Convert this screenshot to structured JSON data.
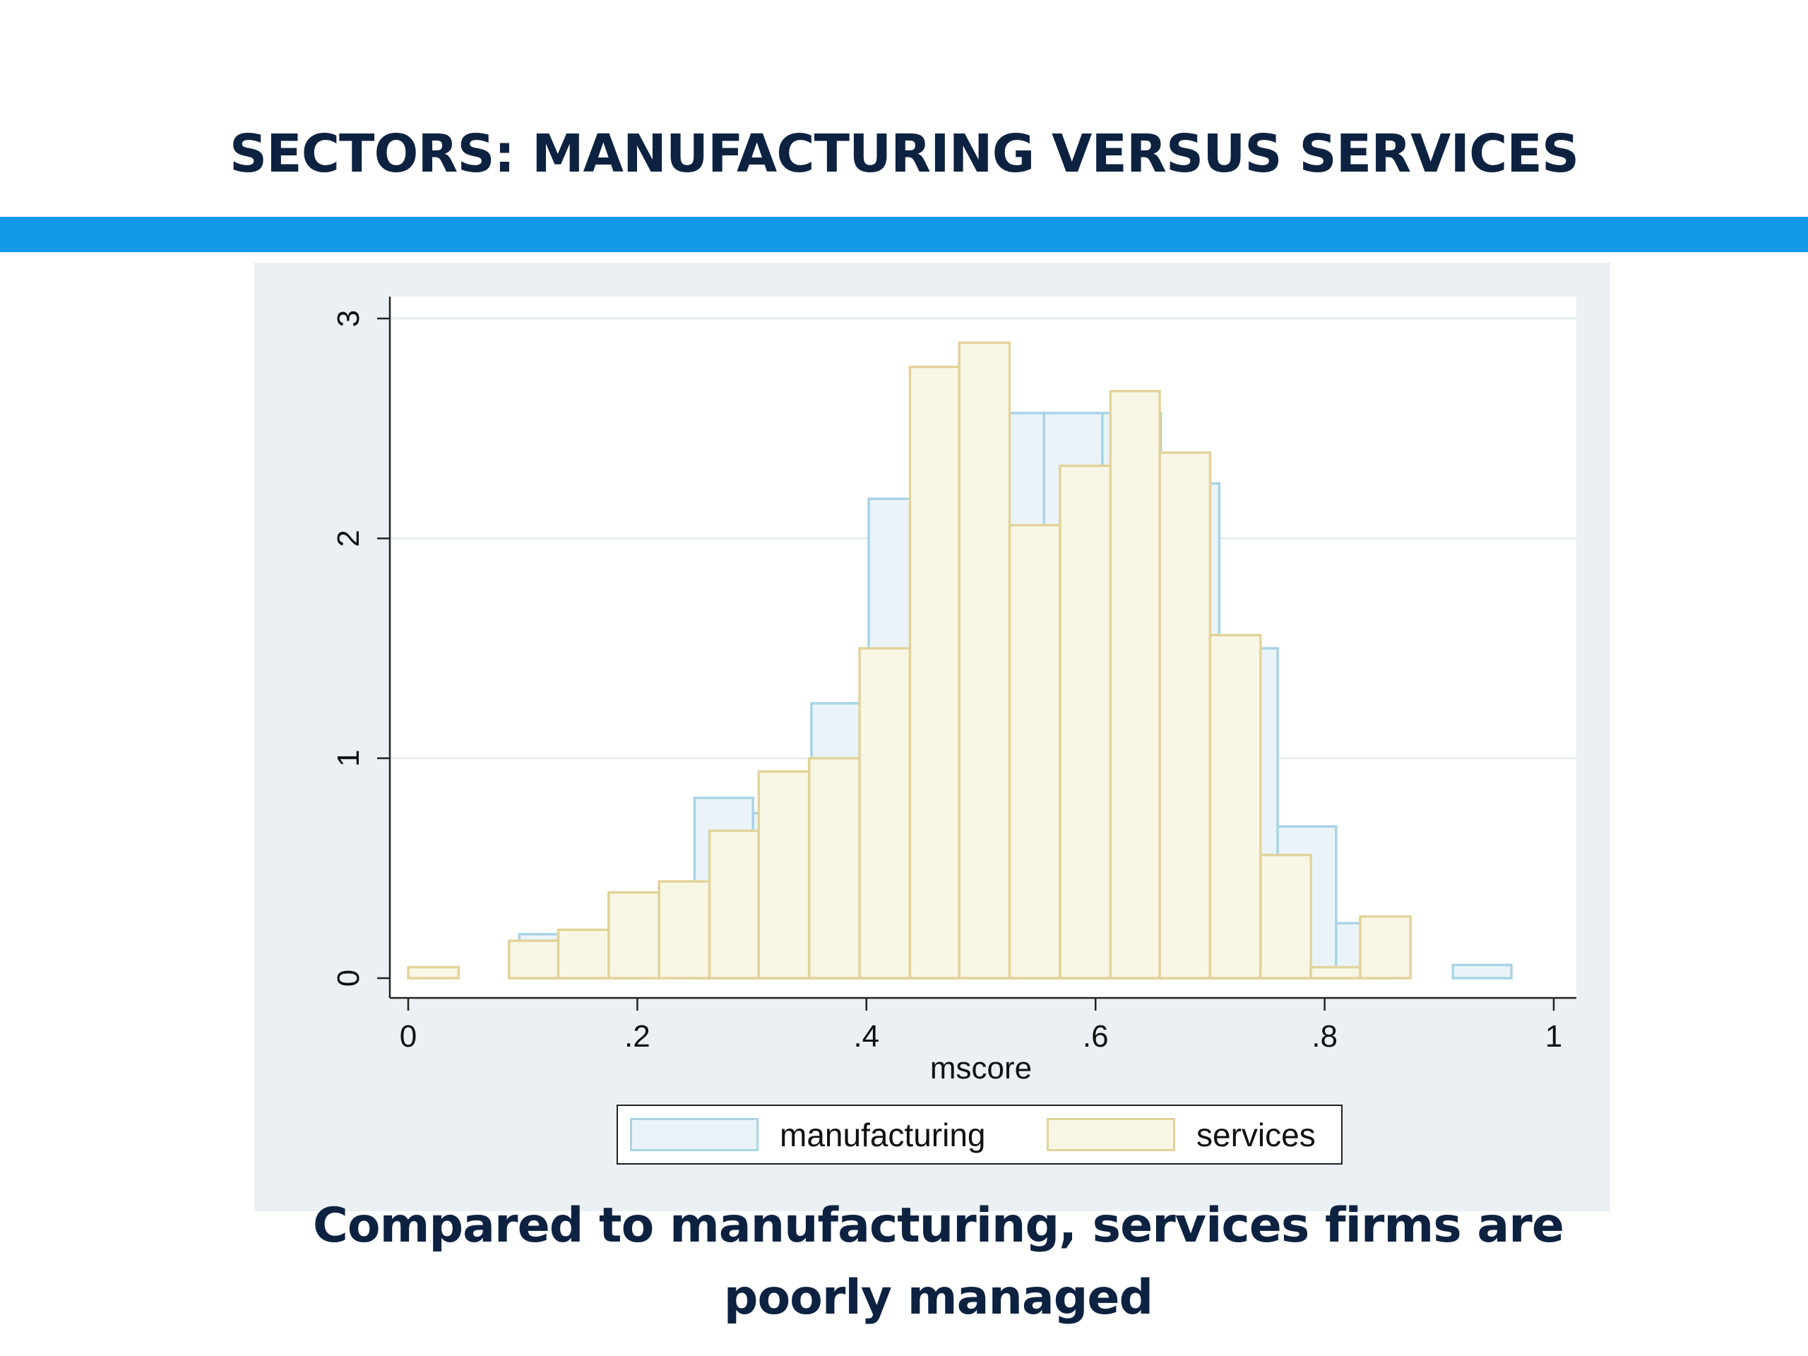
{
  "slide": {
    "title": "SECTORS: MANUFACTURING VERSUS SERVICES",
    "caption": "Compared to manufacturing, services firms are poorly managed"
  },
  "colors": {
    "title_text": "#0d2240",
    "accent_bar": "#1399e8",
    "chart_background": "#eaf0f3",
    "manufacturing_fill": "#eaf4f8",
    "manufacturing_stroke": "#a8d4e6",
    "services_fill": "#f8f7e6",
    "services_stroke": "#e3d39a"
  },
  "chart_data": {
    "type": "bar",
    "subtype": "overlaid-histogram",
    "title": "",
    "xlabel": "mscore",
    "ylabel": "",
    "xlim": [
      0,
      1
    ],
    "ylim": [
      0,
      3
    ],
    "x_ticks": [
      0,
      0.2,
      0.4,
      0.6,
      0.8,
      1
    ],
    "x_tick_labels": [
      "0",
      ".2",
      ".4",
      ".6",
      ".8",
      "1"
    ],
    "y_ticks": [
      0,
      1,
      2,
      3
    ],
    "y_tick_labels": [
      "0",
      "1",
      "2",
      "3"
    ],
    "grid": true,
    "legend_position": "bottom",
    "series": [
      {
        "name": "manufacturing",
        "color": "#eaf4f8",
        "edge_color": "#a8d4e6",
        "bins": [
          {
            "x0": 0.097,
            "x1": 0.148,
            "value": 0.2
          },
          {
            "x0": 0.148,
            "x1": 0.199,
            "value": 0.2
          },
          {
            "x0": 0.25,
            "x1": 0.301,
            "value": 0.82
          },
          {
            "x0": 0.301,
            "x1": 0.352,
            "value": 0.75
          },
          {
            "x0": 0.352,
            "x1": 0.402,
            "value": 1.25
          },
          {
            "x0": 0.402,
            "x1": 0.453,
            "value": 2.18
          },
          {
            "x0": 0.453,
            "x1": 0.504,
            "value": 2.18
          },
          {
            "x0": 0.504,
            "x1": 0.555,
            "value": 2.57
          },
          {
            "x0": 0.555,
            "x1": 0.606,
            "value": 2.57
          },
          {
            "x0": 0.606,
            "x1": 0.657,
            "value": 2.57
          },
          {
            "x0": 0.657,
            "x1": 0.708,
            "value": 2.25
          },
          {
            "x0": 0.708,
            "x1": 0.759,
            "value": 1.5
          },
          {
            "x0": 0.759,
            "x1": 0.81,
            "value": 0.69
          },
          {
            "x0": 0.81,
            "x1": 0.861,
            "value": 0.25
          },
          {
            "x0": 0.912,
            "x1": 0.963,
            "value": 0.06
          }
        ]
      },
      {
        "name": "services",
        "color": "#f8f7e6",
        "edge_color": "#e3d39a",
        "bins": [
          {
            "x0": 0.0,
            "x1": 0.044,
            "value": 0.05
          },
          {
            "x0": 0.088,
            "x1": 0.131,
            "value": 0.17
          },
          {
            "x0": 0.131,
            "x1": 0.175,
            "value": 0.22
          },
          {
            "x0": 0.175,
            "x1": 0.219,
            "value": 0.39
          },
          {
            "x0": 0.219,
            "x1": 0.263,
            "value": 0.44
          },
          {
            "x0": 0.263,
            "x1": 0.306,
            "value": 0.67
          },
          {
            "x0": 0.306,
            "x1": 0.35,
            "value": 0.94
          },
          {
            "x0": 0.35,
            "x1": 0.394,
            "value": 1.0
          },
          {
            "x0": 0.394,
            "x1": 0.438,
            "value": 1.5
          },
          {
            "x0": 0.438,
            "x1": 0.481,
            "value": 2.78
          },
          {
            "x0": 0.481,
            "x1": 0.525,
            "value": 2.89
          },
          {
            "x0": 0.525,
            "x1": 0.569,
            "value": 2.06
          },
          {
            "x0": 0.569,
            "x1": 0.613,
            "value": 2.33
          },
          {
            "x0": 0.613,
            "x1": 0.656,
            "value": 2.67
          },
          {
            "x0": 0.656,
            "x1": 0.7,
            "value": 2.39
          },
          {
            "x0": 0.7,
            "x1": 0.744,
            "value": 1.56
          },
          {
            "x0": 0.744,
            "x1": 0.788,
            "value": 0.56
          },
          {
            "x0": 0.788,
            "x1": 0.831,
            "value": 0.05
          },
          {
            "x0": 0.831,
            "x1": 0.875,
            "value": 0.28
          }
        ]
      }
    ]
  }
}
